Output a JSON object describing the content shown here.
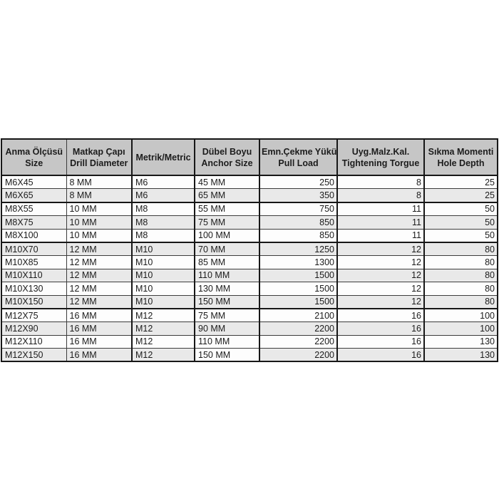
{
  "chart_data": {
    "type": "table",
    "title": "",
    "columns": [
      {
        "id": "anma-olcusu-size",
        "lines": [
          "Anma Ölçüsü",
          "Size"
        ],
        "align": "left"
      },
      {
        "id": "matkap-capi-drill-diameter",
        "lines": [
          "Matkap Çapı",
          "Drill Diameter"
        ],
        "align": "left"
      },
      {
        "id": "metrik-metric",
        "lines": [
          "Metrik/Metric"
        ],
        "align": "left"
      },
      {
        "id": "dubel-boyu-anchor-size",
        "lines": [
          "Dübel Boyu",
          "Anchor Size"
        ],
        "align": "left"
      },
      {
        "id": "emn-cekme-yuku-pull-load",
        "lines": [
          "Emn.Çekme Yükü",
          "Pull Load"
        ],
        "align": "right"
      },
      {
        "id": "uyg-malz-kal-tightening-torgue",
        "lines": [
          "Uyg.Malz.Kal.",
          "Tightening Torgue"
        ],
        "align": "right"
      },
      {
        "id": "sikma-momenti-hole-depth",
        "lines": [
          "Sıkma Momenti",
          "Hole Depth"
        ],
        "align": "right"
      }
    ],
    "rows": [
      [
        "M6X45",
        "8 MM",
        "M6",
        "45 MM",
        250,
        8,
        25
      ],
      [
        "M6X65",
        "8 MM",
        "M6",
        "65 MM",
        350,
        8,
        25
      ],
      [
        "M8X55",
        "10 MM",
        "M8",
        "55 MM",
        750,
        11,
        50
      ],
      [
        "M8X75",
        "10 MM",
        "M8",
        "75 MM",
        850,
        11,
        50
      ],
      [
        "M8X100",
        "10 MM",
        "M8",
        "100 MM",
        850,
        11,
        50
      ],
      [
        "M10X70",
        "12 MM",
        "M10",
        "70 MM",
        1250,
        12,
        80
      ],
      [
        "M10X85",
        "12 MM",
        "M10",
        "85 MM",
        1300,
        12,
        80
      ],
      [
        "M10X110",
        "12 MM",
        "M10",
        "110 MM",
        1500,
        12,
        80
      ],
      [
        "M10X130",
        "12 MM",
        "M10",
        "130 MM",
        1500,
        12,
        80
      ],
      [
        "M10X150",
        "12 MM",
        "M10",
        "150 MM",
        1500,
        12,
        80
      ],
      [
        "M12X75",
        "16 MM",
        "M12",
        "75 MM",
        2100,
        16,
        100
      ],
      [
        "M12X90",
        "16 MM",
        "M12",
        "90 MM",
        2200,
        16,
        100
      ],
      [
        "M12X110",
        "16 MM",
        "M12",
        "110 MM",
        2200,
        16,
        130
      ],
      [
        "M12X150",
        "16 MM",
        "M12",
        "150 MM",
        2200,
        16,
        130
      ]
    ],
    "colors": {
      "header_bg": "#c6c6c6",
      "row_bg": "#fdfdfd",
      "row_alt_bg": "#e9e9e9",
      "border_thick": "#171717",
      "border_thin": "#3c3c3c",
      "text": "#1c1c1c"
    }
  }
}
